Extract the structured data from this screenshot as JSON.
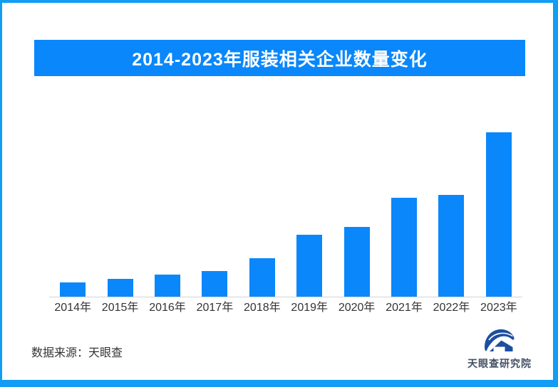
{
  "frame": {
    "border_color": "#129cf3"
  },
  "title_banner": {
    "text": "2014-2023年服装相关企业数量变化",
    "bg_color": "#0a87fa",
    "text_color": "#ffffff"
  },
  "chart_data": {
    "type": "bar",
    "title": "2014-2023年服装相关企业数量变化",
    "categories": [
      "2014年",
      "2015年",
      "2016年",
      "2017年",
      "2018年",
      "2019年",
      "2020年",
      "2021年",
      "2022年",
      "2023年"
    ],
    "values_pct_of_max": [
      8.6,
      11.0,
      13.4,
      15.8,
      23.3,
      37.5,
      42.4,
      60.1,
      61.9,
      100
    ],
    "xlabel": "",
    "ylabel": "",
    "bar_color": "#0a87fa",
    "axis_line_color": "#d4d4d4",
    "grid": false,
    "y_axis_shown": false,
    "value_labels_shown": false,
    "legend": "none"
  },
  "footer": {
    "source_text": "数据来源：天眼查"
  },
  "logo": {
    "text": "天眼查研究院",
    "mark_color": "#1d4f9f",
    "text_color": "#434f63"
  }
}
